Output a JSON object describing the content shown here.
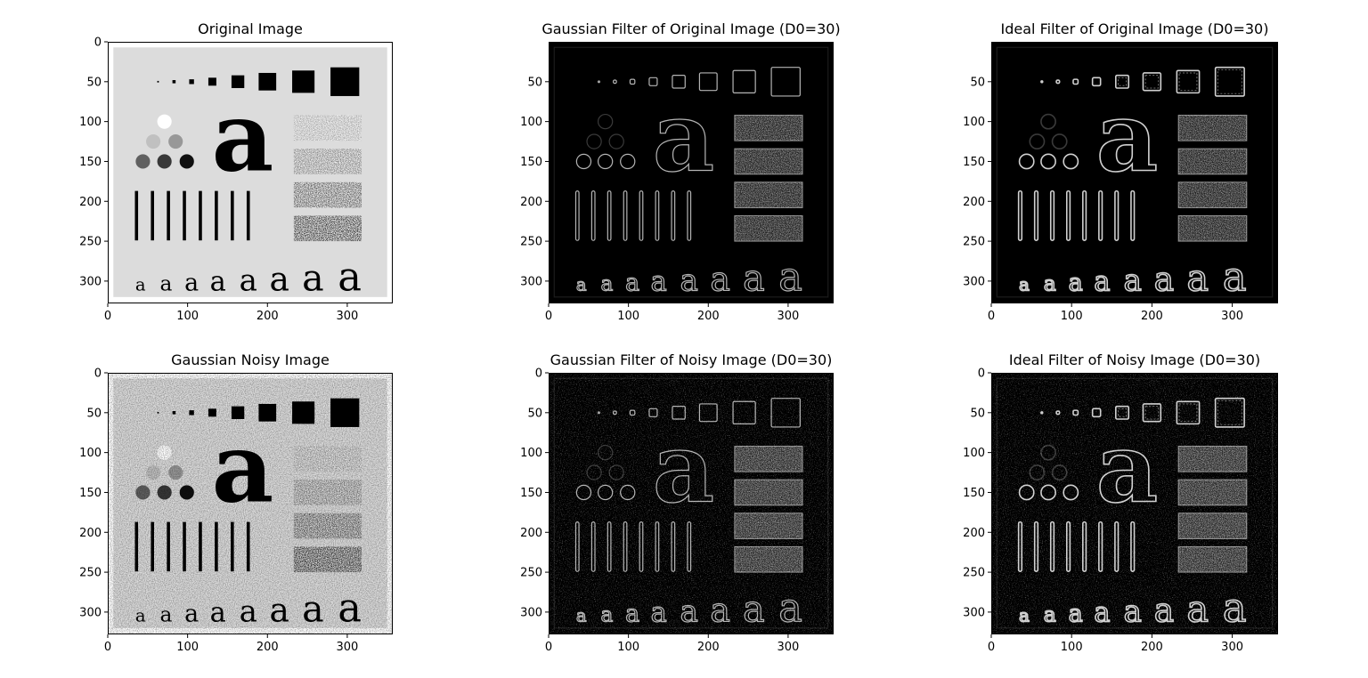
{
  "chart_data": [
    {
      "type": "heatmap",
      "title": "Original Image",
      "variant": "original",
      "noise": false,
      "xticks": [
        0,
        100,
        200,
        300
      ],
      "yticks": [
        0,
        50,
        100,
        150,
        200,
        250,
        300
      ],
      "xlim": [
        0,
        357
      ],
      "ylim": [
        328,
        0
      ],
      "colormap": "gray"
    },
    {
      "type": "heatmap",
      "title": "Gaussian Filter of Original Image (D0=30)",
      "variant": "edges",
      "noise": false,
      "xticks": [
        0,
        100,
        200,
        300
      ],
      "yticks": [
        50,
        100,
        150,
        200,
        250,
        300
      ],
      "xlim": [
        0,
        357
      ],
      "ylim": [
        328,
        0
      ],
      "colormap": "gray"
    },
    {
      "type": "heatmap",
      "title": "Ideal Filter of Original Image (D0=30)",
      "variant": "edges-ringing",
      "noise": false,
      "xticks": [
        0,
        100,
        200,
        300
      ],
      "yticks": [
        50,
        100,
        150,
        200,
        250,
        300
      ],
      "xlim": [
        0,
        357
      ],
      "ylim": [
        328,
        0
      ],
      "colormap": "gray"
    },
    {
      "type": "heatmap",
      "title": "Gaussian Noisy Image",
      "variant": "original",
      "noise": true,
      "xticks": [
        0,
        100,
        200,
        300
      ],
      "yticks": [
        0,
        50,
        100,
        150,
        200,
        250,
        300
      ],
      "xlim": [
        0,
        357
      ],
      "ylim": [
        328,
        0
      ],
      "colormap": "gray"
    },
    {
      "type": "heatmap",
      "title": "Gaussian Filter of Noisy Image (D0=30)",
      "variant": "edges",
      "noise": true,
      "xticks": [
        0,
        100,
        200,
        300
      ],
      "yticks": [
        0,
        50,
        100,
        150,
        200,
        250,
        300
      ],
      "xlim": [
        0,
        357
      ],
      "ylim": [
        328,
        0
      ],
      "colormap": "gray"
    },
    {
      "type": "heatmap",
      "title": "Ideal Filter of Noisy Image (D0=30)",
      "variant": "edges-ringing",
      "noise": true,
      "xticks": [
        0,
        100,
        200,
        300
      ],
      "yticks": [
        0,
        50,
        100,
        150,
        200,
        250,
        300
      ],
      "xlim": [
        0,
        357
      ],
      "ylim": [
        328,
        0
      ],
      "colormap": "gray"
    }
  ],
  "test_pattern": {
    "background_gray": "#dcdcdc",
    "border_gray": "#ffffff",
    "squares_y_center": 50,
    "squares": [
      {
        "x": 63,
        "size": 2
      },
      {
        "x": 83,
        "size": 4
      },
      {
        "x": 105,
        "size": 6
      },
      {
        "x": 131,
        "size": 10
      },
      {
        "x": 163,
        "size": 16
      },
      {
        "x": 200,
        "size": 22
      },
      {
        "x": 245,
        "size": 28
      },
      {
        "x": 297,
        "size": 36
      }
    ],
    "circles": [
      {
        "x": 71,
        "y": 100,
        "r": 9,
        "gray": "#ffffff"
      },
      {
        "x": 57,
        "y": 125,
        "r": 9,
        "gray": "#c0c0c0"
      },
      {
        "x": 85,
        "y": 125,
        "r": 9,
        "gray": "#989898"
      },
      {
        "x": 44,
        "y": 150,
        "r": 9,
        "gray": "#606060"
      },
      {
        "x": 71,
        "y": 150,
        "r": 9,
        "gray": "#383838"
      },
      {
        "x": 99,
        "y": 150,
        "r": 9,
        "gray": "#101010"
      }
    ],
    "big_letter": {
      "text": "a",
      "x": 169,
      "y": 118,
      "size": 120
    },
    "bars_x": [
      36,
      56,
      76,
      96,
      116,
      136,
      156,
      176
    ],
    "bars_y_range": [
      187,
      249
    ],
    "bar_width": 4,
    "texture_rects": [
      {
        "y": 92,
        "h": 32
      },
      {
        "y": 134,
        "h": 32
      },
      {
        "y": 176,
        "h": 32
      },
      {
        "y": 218,
        "h": 32
      }
    ],
    "texture_x_range": [
      233,
      318
    ],
    "small_letters": [
      {
        "x": 41,
        "size": 22
      },
      {
        "x": 73,
        "size": 26
      },
      {
        "x": 105,
        "size": 30
      },
      {
        "x": 138,
        "size": 34
      },
      {
        "x": 176,
        "size": 38
      },
      {
        "x": 215,
        "size": 42
      },
      {
        "x": 257,
        "size": 46
      },
      {
        "x": 303,
        "size": 50
      }
    ],
    "small_letters_baseline": 312
  }
}
